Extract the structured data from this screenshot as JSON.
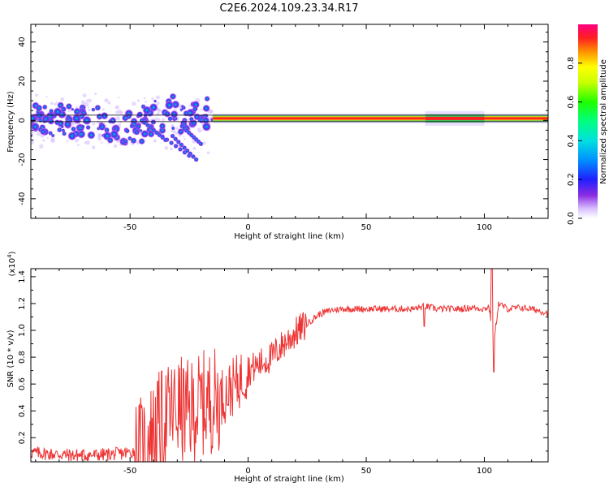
{
  "chart_data": [
    {
      "type": "heatmap",
      "title": "C2E6.2024.109.23.34.R17",
      "xlabel": "Height of straight line (km)",
      "ylabel": "Frequency (Hz)",
      "xlim": [
        -92,
        127
      ],
      "ylim": [
        -50,
        49
      ],
      "x_ticks": [
        -50,
        0,
        50,
        100
      ],
      "y_ticks": [
        -40,
        -20,
        0,
        20,
        40
      ],
      "colorbar": {
        "label": "Normalized spectral amplitude",
        "range": [
          0.0,
          1.0
        ],
        "ticks": [
          0.0,
          0.2,
          0.4,
          0.6,
          0.8
        ],
        "colors": [
          "#ffffff",
          "#c8a2ff",
          "#7a00ff",
          "#0000ff",
          "#00b4ff",
          "#00ffc8",
          "#00ff00",
          "#ffff00",
          "#ff8000",
          "#ff0000",
          "#ff0066"
        ]
      },
      "band": [
        {
          "x_start": -92,
          "x_end": -15,
          "center_hz": 0,
          "spread_hz": 8,
          "note": "scattered broadband signal"
        },
        {
          "x_start": -15,
          "x_end": 127,
          "center_hz": 1,
          "spread_hz": 2,
          "note": "narrow continuous tone"
        }
      ]
    },
    {
      "type": "line",
      "xlabel": "Height of straight line (km)",
      "ylabel": "SNR (10 * v/v)",
      "y_multiplier": "(x10",
      "y_multiplier_exp": "4",
      "y_multiplier_close": ")",
      "xlim": [
        -92,
        127
      ],
      "ylim": [
        0.02,
        1.46
      ],
      "x_ticks": [
        -50,
        0,
        50,
        100
      ],
      "y_ticks": [
        0.2,
        0.4,
        0.6,
        0.8,
        1.0,
        1.2,
        1.4
      ],
      "series": [
        {
          "name": "SNR",
          "color": "#ee3333",
          "x": [
            -92,
            -85,
            -75,
            -65,
            -55,
            -50,
            -45,
            -40,
            -35,
            -30,
            -25,
            -20,
            -15,
            -12,
            -10,
            -5,
            0,
            5,
            10,
            15,
            20,
            25,
            30,
            35,
            40,
            50,
            60,
            70,
            75,
            80,
            90,
            95,
            100,
            102,
            104,
            106,
            110,
            115,
            120,
            127
          ],
          "values": [
            0.09,
            0.08,
            0.07,
            0.07,
            0.08,
            0.09,
            0.12,
            0.25,
            0.35,
            0.42,
            0.38,
            0.45,
            0.48,
            0.5,
            0.52,
            0.6,
            0.7,
            0.75,
            0.8,
            0.9,
            0.98,
            1.05,
            1.12,
            1.15,
            1.16,
            1.16,
            1.16,
            1.16,
            1.18,
            1.16,
            1.16,
            1.17,
            1.16,
            1.18,
            0.9,
            1.2,
            1.16,
            1.17,
            1.16,
            1.13
          ]
        }
      ],
      "annotations": [
        {
          "x": 104,
          "value": 1.46,
          "note": "spike"
        },
        {
          "x": 104,
          "value": 0.69,
          "note": "dip"
        }
      ]
    }
  ]
}
